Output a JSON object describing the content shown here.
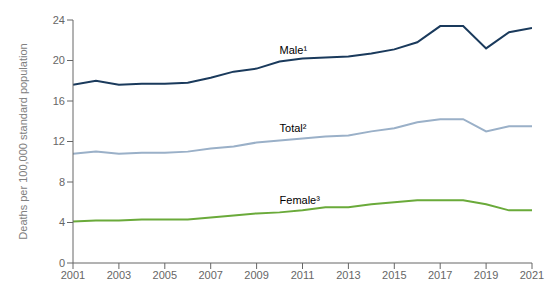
{
  "chart_data": {
    "type": "line",
    "y_label": "Deaths per 100,000 standard population",
    "x": [
      2001,
      2002,
      2003,
      2004,
      2005,
      2006,
      2007,
      2008,
      2009,
      2010,
      2011,
      2012,
      2013,
      2014,
      2015,
      2016,
      2017,
      2018,
      2019,
      2020,
      2021
    ],
    "series": [
      {
        "name": "Male¹",
        "color": "#1a3a5c",
        "values": [
          17.6,
          18.0,
          17.6,
          17.7,
          17.7,
          17.8,
          18.3,
          18.9,
          19.2,
          19.9,
          20.2,
          20.3,
          20.4,
          20.7,
          21.1,
          21.8,
          23.4,
          23.4,
          21.2,
          22.8,
          23.2
        ]
      },
      {
        "name": "Total²",
        "color": "#9ab0c8",
        "values": [
          10.8,
          11.0,
          10.8,
          10.9,
          10.9,
          11.0,
          11.3,
          11.5,
          11.9,
          12.1,
          12.3,
          12.5,
          12.6,
          13.0,
          13.3,
          13.9,
          14.2,
          14.2,
          13.0,
          13.5,
          13.5
        ]
      },
      {
        "name": "Female³",
        "color": "#6aaa3a",
        "values": [
          4.1,
          4.2,
          4.2,
          4.3,
          4.3,
          4.3,
          4.5,
          4.7,
          4.9,
          5.0,
          5.2,
          5.5,
          5.5,
          5.8,
          6.0,
          6.2,
          6.2,
          6.2,
          5.8,
          5.2,
          5.2
        ]
      }
    ],
    "xlim": [
      2001,
      2021
    ],
    "xticks": [
      2001,
      2003,
      2005,
      2007,
      2009,
      2011,
      2013,
      2015,
      2017,
      2019,
      2021
    ],
    "ylim": [
      0,
      24
    ],
    "yticks": [
      0,
      4,
      8,
      12,
      16,
      20,
      24
    ],
    "grid": false
  }
}
